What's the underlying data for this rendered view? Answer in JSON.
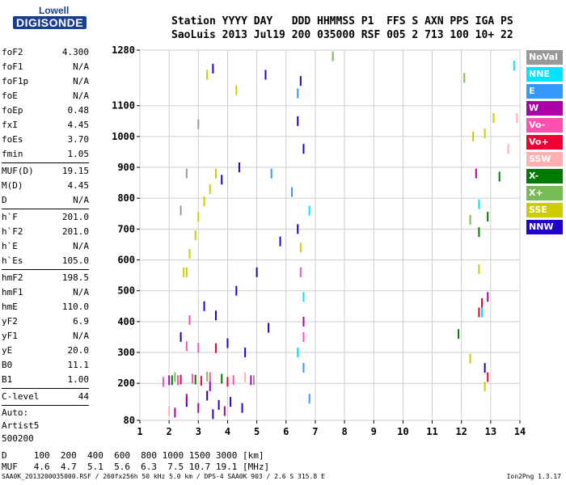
{
  "logo": {
    "top": "Lowell",
    "main": "DIGISONDE"
  },
  "header": {
    "line1": "Station YYYY DAY   DDD HHMMSS P1  FFS S AXN PPS IGA PS",
    "line2": "SaoLuis 2013 Jul19 200 035000 RSF 005 2 713 100 10+ 22"
  },
  "params": [
    {
      "label": "foF2",
      "value": "4.300"
    },
    {
      "label": "foF1",
      "value": "N/A"
    },
    {
      "label": "foF1p",
      "value": "N/A"
    },
    {
      "label": "foE",
      "value": "N/A"
    },
    {
      "label": "foEp",
      "value": "0.48"
    },
    {
      "label": "fxI",
      "value": "4.45"
    },
    {
      "label": "foEs",
      "value": "3.70"
    },
    {
      "label": "fmin",
      "value": "1.05"
    },
    {
      "sep": true
    },
    {
      "label": "MUF(D)",
      "value": "19.15"
    },
    {
      "label": "M(D)",
      "value": "4.45"
    },
    {
      "label": "D",
      "value": "N/A"
    },
    {
      "sep": true
    },
    {
      "label": "h`F",
      "value": "201.0"
    },
    {
      "label": "h`F2",
      "value": "201.0"
    },
    {
      "label": "h`E",
      "value": "N/A"
    },
    {
      "label": "h`Es",
      "value": "105.0"
    },
    {
      "sep": true
    },
    {
      "label": "hmF2",
      "value": "198.5"
    },
    {
      "label": "hmF1",
      "value": "N/A"
    },
    {
      "label": "hmE",
      "value": "110.0"
    },
    {
      "label": "yF2",
      "value": "6.9"
    },
    {
      "label": "yF1",
      "value": "N/A"
    },
    {
      "label": "yE",
      "value": "20.0"
    },
    {
      "label": "B0",
      "value": "11.1"
    },
    {
      "label": "B1",
      "value": "1.00"
    },
    {
      "sep": true
    },
    {
      "label": "C-level",
      "value": "44"
    },
    {
      "sep": true
    }
  ],
  "auto": [
    "Auto:",
    "Artist5",
    "500200"
  ],
  "legend": [
    {
      "label": "NoVal",
      "color": "#999999"
    },
    {
      "label": "NNE",
      "color": "#00e5ff"
    },
    {
      "label": "E",
      "color": "#3399ff"
    },
    {
      "label": "W",
      "color": "#aa00aa"
    },
    {
      "label": "Vo-",
      "color": "#ff4fb0"
    },
    {
      "label": "Vo+",
      "color": "#ee0033"
    },
    {
      "label": "SSW",
      "color": "#ffb0b0"
    },
    {
      "label": "X-",
      "color": "#007a00"
    },
    {
      "label": "X+",
      "color": "#77bb55"
    },
    {
      "label": "SSE",
      "color": "#cccc00"
    },
    {
      "label": "NNW",
      "color": "#2200cc"
    }
  ],
  "bottom": {
    "line1": "D     100  200  400  600  800 1000 1500 3000 [km]",
    "line2": "MUF   4.6  4.7  5.1  5.6  6.3  7.5 10.7 19.1 [MHz]"
  },
  "footer": {
    "left": "SAA0K_2013200035000.RSF / 260fx256h 50 kHz 5.0 km / DPS-4 SAA0K 903 / 2.6 S 315.8 E",
    "right": "Ion2Png 1.3.17"
  },
  "chart_data": {
    "type": "scatter",
    "x_ticks": [
      1,
      2,
      3,
      4,
      5,
      6,
      7,
      8,
      9,
      10,
      11,
      12,
      13,
      14
    ],
    "y_ticks": [
      80,
      200,
      300,
      400,
      500,
      600,
      700,
      800,
      900,
      1000,
      1100,
      1280
    ],
    "xlim": [
      1,
      14
    ],
    "ylim": [
      80,
      1280
    ],
    "grid": true,
    "legend_position": "right",
    "series": [
      {
        "name": "NNW",
        "color": "#2200cc",
        "points": [
          [
            3.5,
            100
          ],
          [
            3.7,
            130
          ],
          [
            4.1,
            140
          ],
          [
            3.3,
            160
          ],
          [
            2.6,
            140
          ],
          [
            4.5,
            120
          ],
          [
            4.0,
            330
          ],
          [
            4.6,
            300
          ],
          [
            3.6,
            420
          ],
          [
            4.3,
            500
          ],
          [
            5.0,
            560
          ],
          [
            5.8,
            660
          ],
          [
            6.4,
            700
          ],
          [
            6.6,
            960
          ],
          [
            6.4,
            1050
          ],
          [
            3.8,
            860
          ],
          [
            4.4,
            900
          ],
          [
            3.5,
            1220
          ],
          [
            6.5,
            1180
          ],
          [
            12.8,
            250
          ],
          [
            3.2,
            450
          ],
          [
            2.4,
            350
          ],
          [
            5.4,
            380
          ],
          [
            5.3,
            1200
          ]
        ]
      },
      {
        "name": "W",
        "color": "#aa00aa",
        "points": [
          [
            2.2,
            105
          ],
          [
            3.0,
            120
          ],
          [
            3.9,
            110
          ],
          [
            2.6,
            150
          ],
          [
            3.4,
            190
          ],
          [
            2.0,
            210
          ],
          [
            4.8,
            210
          ],
          [
            6.6,
            400
          ],
          [
            12.9,
            480
          ],
          [
            12.5,
            880
          ]
        ]
      },
      {
        "name": "Vo-",
        "color": "#ff4fb0",
        "points": [
          [
            2.3,
            210
          ],
          [
            2.8,
            215
          ],
          [
            3.4,
            220
          ],
          [
            4.2,
            210
          ],
          [
            1.8,
            205
          ],
          [
            2.6,
            320
          ],
          [
            3.0,
            315
          ],
          [
            2.7,
            405
          ],
          [
            6.6,
            350
          ],
          [
            6.5,
            560
          ]
        ]
      },
      {
        "name": "Vo+",
        "color": "#ee0033",
        "points": [
          [
            2.4,
            212
          ],
          [
            3.1,
            208
          ],
          [
            4.0,
            205
          ],
          [
            3.6,
            314
          ],
          [
            12.6,
            430
          ],
          [
            12.7,
            460
          ],
          [
            12.9,
            220
          ]
        ]
      },
      {
        "name": "SSE",
        "color": "#cccc00",
        "points": [
          [
            2.5,
            560
          ],
          [
            2.7,
            620
          ],
          [
            2.9,
            680
          ],
          [
            3.0,
            740
          ],
          [
            3.2,
            790
          ],
          [
            3.4,
            830
          ],
          [
            3.6,
            880
          ],
          [
            2.6,
            560
          ],
          [
            3.3,
            1200
          ],
          [
            4.3,
            1150
          ],
          [
            6.5,
            640
          ],
          [
            12.3,
            280
          ],
          [
            12.4,
            1000
          ],
          [
            12.8,
            1010
          ],
          [
            12.6,
            570
          ],
          [
            12.8,
            190
          ],
          [
            13.1,
            1060
          ]
        ]
      },
      {
        "name": "NNE",
        "color": "#00e5ff",
        "points": [
          [
            6.6,
            480
          ],
          [
            6.8,
            760
          ],
          [
            12.6,
            780
          ],
          [
            13.8,
            1230
          ],
          [
            12.7,
            430
          ],
          [
            6.4,
            300
          ]
        ]
      },
      {
        "name": "E",
        "color": "#3399ff",
        "points": [
          [
            6.4,
            1140
          ],
          [
            6.2,
            820
          ],
          [
            5.5,
            880
          ],
          [
            6.6,
            250
          ],
          [
            6.8,
            150
          ]
        ]
      },
      {
        "name": "X-",
        "color": "#007a00",
        "points": [
          [
            2.1,
            210
          ],
          [
            2.9,
            212
          ],
          [
            3.8,
            215
          ],
          [
            12.6,
            690
          ],
          [
            11.9,
            360
          ],
          [
            12.9,
            740
          ],
          [
            13.3,
            870
          ]
        ]
      },
      {
        "name": "X+",
        "color": "#77bb55",
        "points": [
          [
            2.2,
            220
          ],
          [
            3.3,
            222
          ],
          [
            12.3,
            730
          ],
          [
            7.6,
            1260
          ],
          [
            12.1,
            1190
          ]
        ]
      },
      {
        "name": "SSW",
        "color": "#ffb0b0",
        "points": [
          [
            2.0,
            110
          ],
          [
            4.6,
            220
          ],
          [
            13.6,
            960
          ],
          [
            13.9,
            1060
          ]
        ]
      },
      {
        "name": "NoVal",
        "color": "#999999",
        "points": [
          [
            2.6,
            880
          ],
          [
            2.4,
            760
          ],
          [
            3.0,
            1040
          ],
          [
            4.9,
            210
          ]
        ]
      }
    ]
  }
}
